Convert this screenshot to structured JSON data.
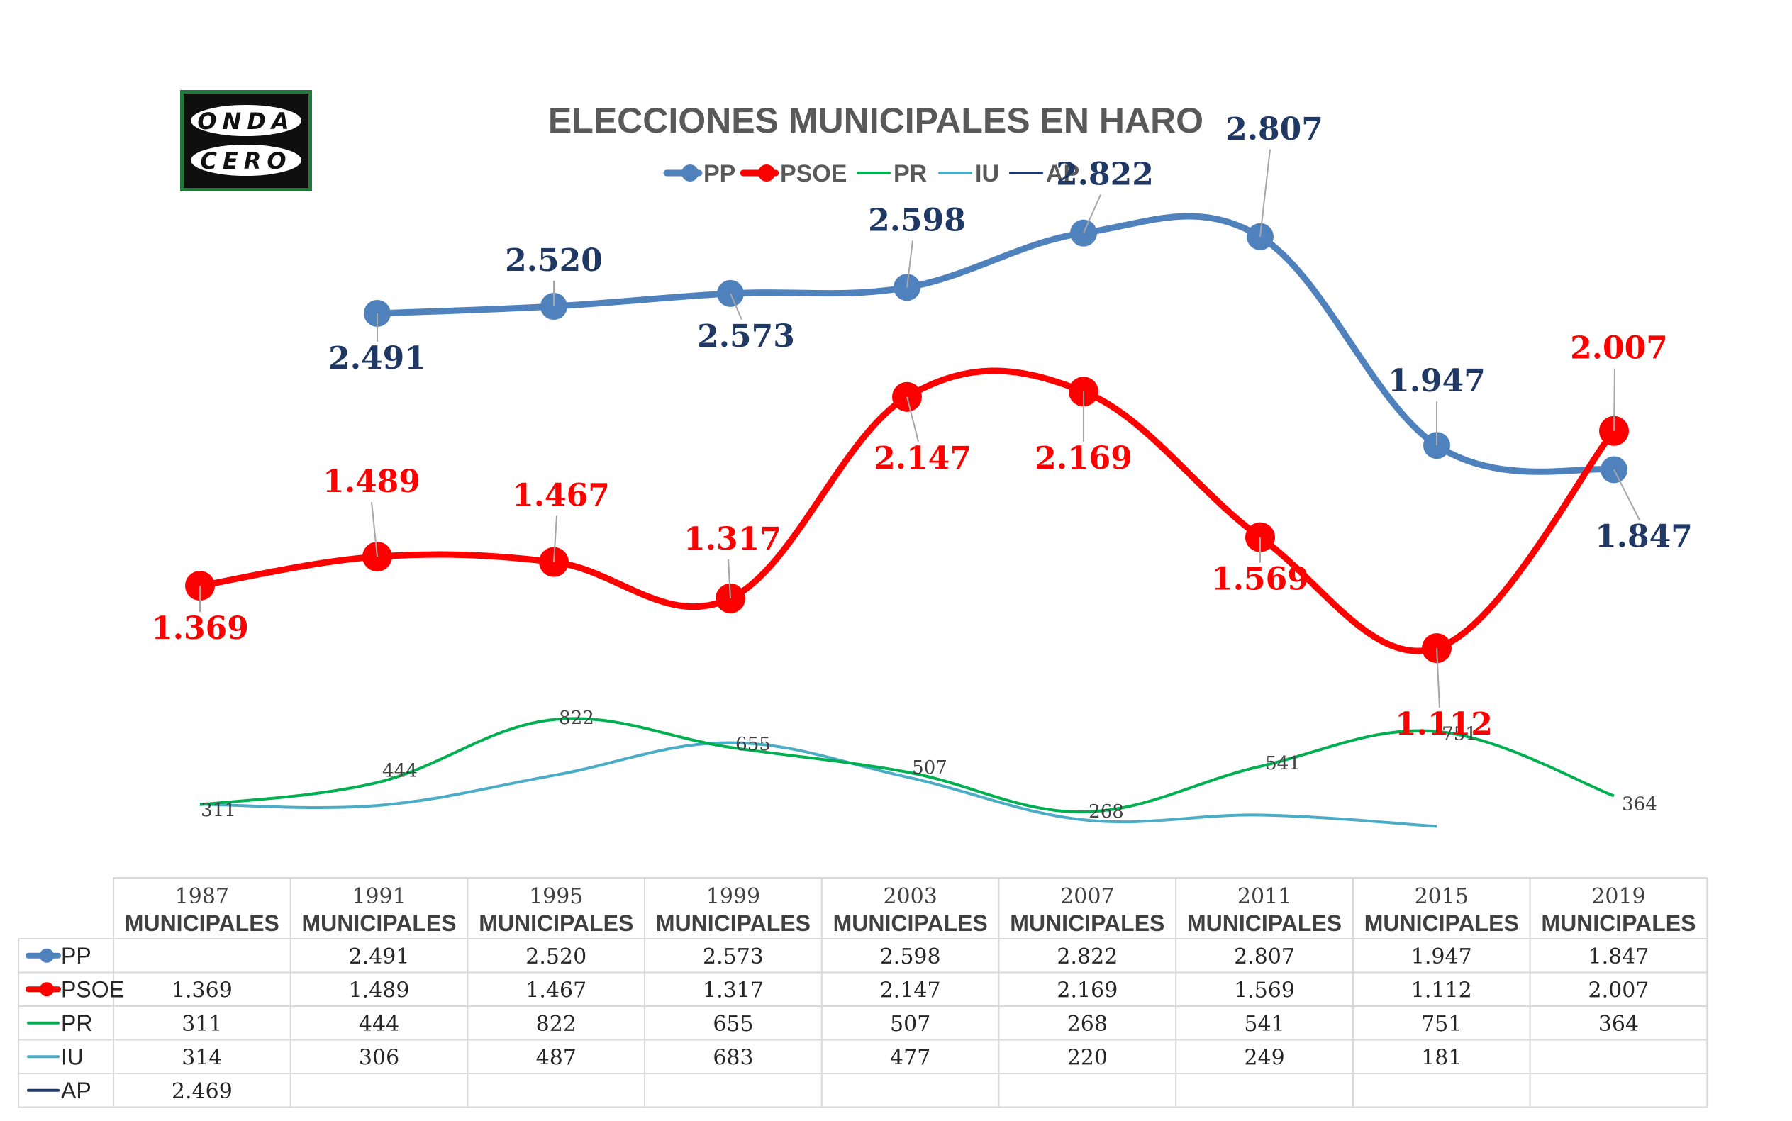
{
  "chart_data": {
    "type": "line",
    "title": "ELECCIONES MUNICIPALES EN HARO",
    "categories": [
      [
        "1987",
        "MUNICIPALES"
      ],
      [
        "1991",
        "MUNICIPALES"
      ],
      [
        "1995",
        "MUNICIPALES"
      ],
      [
        "1999",
        "MUNICIPALES"
      ],
      [
        "2003",
        "MUNICIPALES"
      ],
      [
        "2007",
        "MUNICIPALES"
      ],
      [
        "2011",
        "MUNICIPALES"
      ],
      [
        "2015",
        "MUNICIPALES"
      ],
      [
        "2019",
        "MUNICIPALES"
      ]
    ],
    "series": [
      {
        "name": "PP",
        "color": "#4f81bd",
        "label_color": "#1f3864",
        "values": [
          null,
          2491,
          2520,
          2573,
          2598,
          2822,
          2807,
          1947,
          1847
        ],
        "labels": [
          "",
          "2.491",
          "2.520",
          "2.573",
          "2.598",
          "2.822",
          "2.807",
          "1.947",
          "1.847"
        ]
      },
      {
        "name": "PSOE",
        "color": "#ff0000",
        "label_color": "#ff0000",
        "values": [
          1369,
          1489,
          1467,
          1317,
          2147,
          2169,
          1569,
          1112,
          2007
        ],
        "labels": [
          "1.369",
          "1.489",
          "1.467",
          "1.317",
          "2.147",
          "2.169",
          "1.569",
          "1.112",
          "2.007"
        ]
      },
      {
        "name": "PR",
        "color": "#00b050",
        "label_color": "#404040",
        "values": [
          311,
          444,
          822,
          655,
          507,
          268,
          541,
          751,
          364
        ],
        "labels": [
          "311",
          "444",
          "822",
          "655",
          "507",
          "268",
          "541",
          "751",
          "364"
        ]
      },
      {
        "name": "IU",
        "color": "#4bacc6",
        "label_color": "#404040",
        "values": [
          314,
          306,
          487,
          683,
          477,
          220,
          249,
          181,
          null
        ],
        "labels": [
          "314",
          "306",
          "487",
          "683",
          "477",
          "220",
          "249",
          "181",
          ""
        ]
      },
      {
        "name": "AP",
        "color": "#1f3864",
        "label_color": "#404040",
        "values": [
          2469,
          null,
          null,
          null,
          null,
          null,
          null,
          null,
          null
        ],
        "labels": [
          "2.469",
          "",
          "",
          "",
          "",
          "",
          "",
          "",
          ""
        ]
      }
    ],
    "legend": "top"
  },
  "logo": {
    "line1": "ONDA",
    "line2": "CERO"
  }
}
